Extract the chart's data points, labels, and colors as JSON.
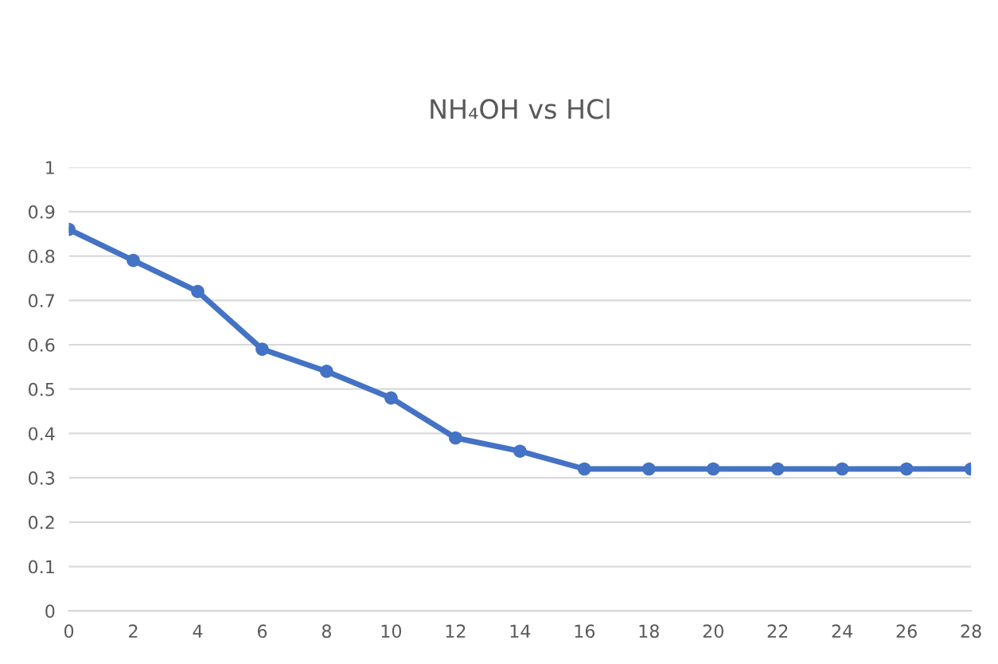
{
  "chart_data": {
    "type": "line",
    "title": "NH₄OH vs HCl",
    "categories": [
      "0",
      "2",
      "4",
      "6",
      "8",
      "10",
      "12",
      "14",
      "16",
      "18",
      "20",
      "22",
      "24",
      "26",
      "28"
    ],
    "series": [
      {
        "color": "#4472c4",
        "values": [
          0.86,
          0.79,
          0.72,
          0.59,
          0.54,
          0.48,
          0.39,
          0.36,
          0.32,
          0.32,
          0.32,
          0.32,
          0.32,
          0.32,
          0.32
        ]
      }
    ],
    "ylim": [
      0,
      1
    ],
    "yticks": [
      0,
      0.1,
      0.2,
      0.3,
      0.4,
      0.5,
      0.6,
      0.7,
      0.8,
      0.9,
      1
    ],
    "grid": "y",
    "marker": "circle",
    "line_style": "solid",
    "legend": false
  }
}
